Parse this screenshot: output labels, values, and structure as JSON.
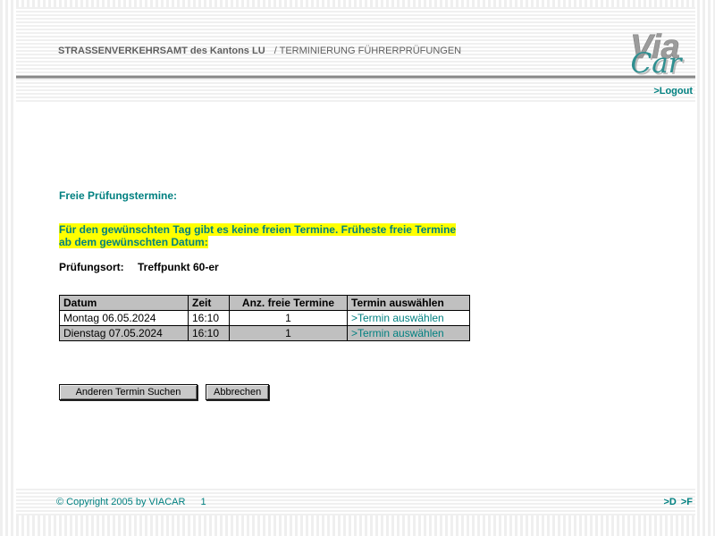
{
  "header": {
    "title_bold": "STRASSENVERKEHRSAMT des Kantons  LU",
    "title_regular": "/ TERMINIERUNG FÜHRERPRÜFUNGEN",
    "logo": {
      "via": "Via",
      "car": "Car"
    }
  },
  "nav": {
    "logout_label": ">Logout"
  },
  "main": {
    "heading": "Freie Prüfungstermine:",
    "notice": "Für den gewünschten Tag gibt es keine freien Termine. Früheste freie Termine ab dem gewünschten Datum:",
    "location_label": "Prüfungsort:",
    "location_value": "Treffpunkt 60-er",
    "table": {
      "headers": [
        "Datum",
        "Zeit",
        "Anz. freie Termine",
        "Termin auswählen"
      ],
      "rows": [
        {
          "datum": "Montag 06.05.2024",
          "zeit": "16:10",
          "anz": "1",
          "link": ">Termin auswählen"
        },
        {
          "datum": "Dienstag 07.05.2024",
          "zeit": "16:10",
          "anz": "1",
          "link": ">Termin auswählen"
        }
      ]
    },
    "buttons": {
      "search_other": "Anderen Termin Suchen",
      "cancel": "Abbrechen"
    }
  },
  "footer": {
    "copyright": "© Copyright 2005 by VIACAR",
    "page_number": "1",
    "lang_d": ">D",
    "lang_f": ">F"
  },
  "colors": {
    "accent_teal": "#008080",
    "highlight_yellow": "#ffff00",
    "table_gray": "#c0c0c0",
    "title_gray": "#5f5f5f"
  }
}
